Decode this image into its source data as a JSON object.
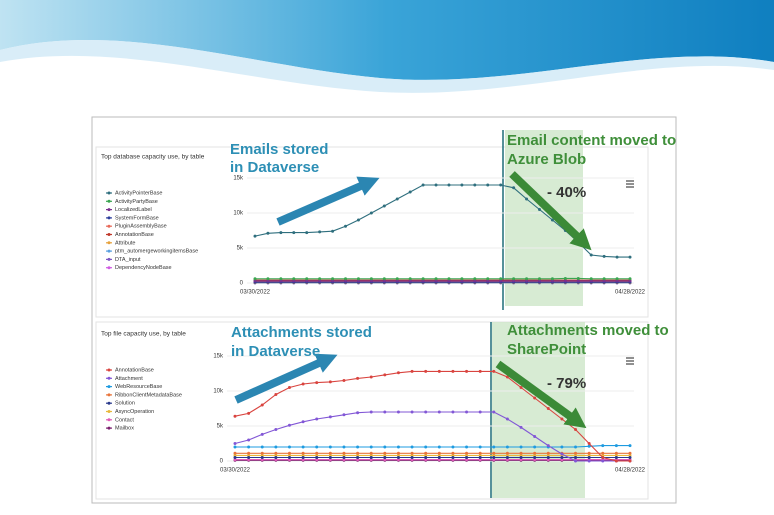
{
  "chart_data": [
    {
      "type": "line",
      "title": "Top database capacity use, by table",
      "categories": [
        "03/30/2022",
        null,
        null,
        null,
        null,
        null,
        null,
        null,
        null,
        null,
        null,
        null,
        null,
        null,
        null,
        null,
        null,
        null,
        null,
        null,
        null,
        null,
        null,
        null,
        null,
        null,
        null,
        null,
        null,
        "04/28/2022"
      ],
      "ylim": [
        0,
        15000
      ],
      "yticks": [
        0,
        {
          "value": 5000,
          "label": "5k"
        },
        {
          "value": 10000,
          "label": "10k"
        },
        {
          "value": 15000,
          "label": "15k"
        }
      ],
      "legend": "left",
      "annotations": [
        "Emails stored",
        "in Dataverse",
        "Email content moved to",
        "Azure Blob",
        "- 40%"
      ],
      "series": [
        {
          "name": "ActivityPointerBase",
          "color": "#2f6f7e",
          "values": [
            6700,
            7100,
            7200,
            7200,
            7200,
            7300,
            7400,
            8100,
            9000,
            10000,
            11000,
            12000,
            13000,
            14000,
            14000,
            14000,
            14000,
            14000,
            14000,
            14000,
            13600,
            12000,
            10500,
            9000,
            7500,
            5800,
            4000,
            3800,
            3700,
            3700
          ]
        },
        {
          "name": "ActivityPartyBase",
          "color": "#3aa650",
          "values": [
            600,
            600,
            600,
            600,
            600,
            600,
            600,
            600,
            600,
            600,
            600,
            600,
            600,
            600,
            600,
            600,
            600,
            600,
            600,
            600,
            600,
            600,
            600,
            600,
            650,
            650,
            600,
            600,
            600,
            600
          ]
        },
        {
          "name": "LocalizedLabel",
          "color": "#7b2d8e",
          "values": [
            300,
            300,
            300,
            300,
            300,
            300,
            300,
            300,
            300,
            300,
            300,
            300,
            300,
            300,
            300,
            300,
            300,
            300,
            300,
            300,
            300,
            300,
            300,
            300,
            300,
            300,
            300,
            300,
            300,
            300
          ]
        },
        {
          "name": "SystemFormBase",
          "color": "#2c3e9c",
          "values": [
            100,
            100,
            100,
            100,
            100,
            100,
            100,
            100,
            100,
            100,
            100,
            100,
            100,
            100,
            100,
            100,
            100,
            100,
            100,
            100,
            100,
            100,
            100,
            100,
            100,
            100,
            100,
            100,
            100,
            100
          ]
        },
        {
          "name": "PluginAssemblyBase",
          "color": "#e86a5a",
          "values": [
            200,
            200,
            200,
            200,
            200,
            200,
            200,
            200,
            200,
            200,
            200,
            200,
            200,
            200,
            200,
            200,
            200,
            200,
            200,
            200,
            200,
            200,
            200,
            200,
            200,
            200,
            200,
            200,
            200,
            200
          ]
        },
        {
          "name": "AnnotationBase",
          "color": "#c0392b",
          "values": [
            400,
            400,
            400,
            400,
            400,
            400,
            400,
            400,
            400,
            400,
            400,
            400,
            400,
            400,
            400,
            400,
            400,
            400,
            400,
            400,
            400,
            400,
            400,
            400,
            400,
            400,
            400,
            400,
            400,
            400
          ]
        },
        {
          "name": "Attribute",
          "color": "#e6a23c",
          "values": [
            50,
            50,
            50,
            50,
            50,
            50,
            50,
            50,
            50,
            50,
            50,
            50,
            50,
            50,
            50,
            50,
            50,
            50,
            50,
            50,
            50,
            50,
            50,
            50,
            50,
            50,
            50,
            50,
            50,
            50
          ]
        },
        {
          "name": "ptm_automergeworkingitemsBase",
          "color": "#5aa0e0",
          "values": [
            30,
            30,
            30,
            30,
            30,
            30,
            30,
            30,
            30,
            30,
            30,
            30,
            30,
            30,
            30,
            30,
            30,
            30,
            30,
            30,
            30,
            30,
            30,
            30,
            30,
            30,
            30,
            30,
            30,
            30
          ]
        },
        {
          "name": "DTA_input",
          "color": "#7e57c2",
          "values": [
            20,
            20,
            20,
            20,
            20,
            20,
            20,
            20,
            20,
            20,
            20,
            20,
            20,
            20,
            20,
            20,
            20,
            20,
            20,
            20,
            20,
            20,
            20,
            20,
            20,
            20,
            20,
            20,
            20,
            20
          ]
        },
        {
          "name": "DependencyNodeBase",
          "color": "#d05ce3",
          "values": [
            10,
            10,
            10,
            10,
            10,
            10,
            10,
            10,
            10,
            10,
            10,
            10,
            10,
            10,
            10,
            10,
            10,
            10,
            10,
            10,
            10,
            10,
            10,
            10,
            10,
            10,
            10,
            10,
            10,
            10
          ]
        }
      ]
    },
    {
      "type": "line",
      "title": "Top file capacity use, by table",
      "categories": [
        "03/30/2022",
        null,
        null,
        null,
        null,
        null,
        null,
        null,
        null,
        null,
        null,
        null,
        null,
        null,
        null,
        null,
        null,
        null,
        null,
        null,
        null,
        null,
        null,
        null,
        null,
        null,
        null,
        null,
        null,
        "04/28/2022"
      ],
      "ylim": [
        0,
        15000
      ],
      "yticks": [
        0,
        {
          "value": 5000,
          "label": "5k"
        },
        {
          "value": 10000,
          "label": "10k"
        },
        {
          "value": 15000,
          "label": "15k"
        }
      ],
      "legend": "left",
      "annotations": [
        "Attachments stored",
        "in Dataverse",
        "Attachments moved to",
        "SharePoint",
        "- 79%"
      ],
      "series": [
        {
          "name": "AnnotationBase",
          "color": "#d9443f",
          "values": [
            6400,
            6800,
            8000,
            9500,
            10500,
            11000,
            11200,
            11300,
            11500,
            11800,
            12000,
            12300,
            12600,
            12800,
            12800,
            12800,
            12800,
            12800,
            12800,
            12800,
            12000,
            10500,
            9000,
            7500,
            6000,
            4500,
            2500,
            500,
            0,
            0
          ]
        },
        {
          "name": "Attachment",
          "color": "#8257d6",
          "values": [
            2500,
            3000,
            3800,
            4500,
            5100,
            5600,
            6000,
            6300,
            6600,
            6900,
            7000,
            7000,
            7000,
            7000,
            7000,
            7000,
            7000,
            7000,
            7000,
            7000,
            6000,
            4800,
            3500,
            2200,
            1000,
            0,
            0,
            0,
            0,
            0
          ]
        },
        {
          "name": "WebResourceBase",
          "color": "#1e9be0",
          "values": [
            2000,
            2000,
            2000,
            2000,
            2000,
            2000,
            2000,
            2000,
            2000,
            2000,
            2000,
            2000,
            2000,
            2000,
            2000,
            2000,
            2000,
            2000,
            2000,
            2000,
            2000,
            2000,
            2000,
            2000,
            2000,
            2000,
            2100,
            2200,
            2200,
            2200
          ]
        },
        {
          "name": "RibbonClientMetadataBase",
          "color": "#e8743b",
          "values": [
            1100,
            1100,
            1100,
            1100,
            1100,
            1100,
            1100,
            1100,
            1100,
            1100,
            1100,
            1100,
            1100,
            1100,
            1100,
            1100,
            1100,
            1100,
            1100,
            1100,
            1100,
            1100,
            1100,
            1100,
            1100,
            1100,
            1100,
            1100,
            1100,
            1100
          ]
        },
        {
          "name": "Solution",
          "color": "#2a3a8c",
          "values": [
            500,
            500,
            500,
            500,
            500,
            500,
            500,
            500,
            500,
            500,
            500,
            500,
            500,
            500,
            500,
            500,
            500,
            500,
            500,
            500,
            500,
            500,
            500,
            500,
            500,
            500,
            500,
            500,
            500,
            500
          ]
        },
        {
          "name": "AsyncOperation",
          "color": "#e8b83b",
          "values": [
            800,
            800,
            800,
            800,
            800,
            800,
            800,
            800,
            800,
            800,
            800,
            800,
            800,
            800,
            800,
            800,
            800,
            800,
            800,
            800,
            800,
            800,
            800,
            800,
            800,
            800,
            800,
            800,
            800,
            800
          ]
        },
        {
          "name": "Contact",
          "color": "#e05ab8",
          "values": [
            200,
            200,
            200,
            200,
            200,
            200,
            200,
            200,
            200,
            200,
            200,
            200,
            200,
            200,
            200,
            200,
            200,
            200,
            200,
            200,
            200,
            200,
            200,
            200,
            200,
            200,
            200,
            200,
            200,
            200
          ]
        },
        {
          "name": "Mailbox",
          "color": "#7a1f6e",
          "values": [
            100,
            100,
            100,
            100,
            100,
            100,
            100,
            100,
            100,
            100,
            100,
            100,
            100,
            100,
            100,
            100,
            100,
            100,
            100,
            100,
            100,
            100,
            100,
            100,
            100,
            100,
            100,
            100,
            100,
            100
          ]
        }
      ]
    }
  ]
}
